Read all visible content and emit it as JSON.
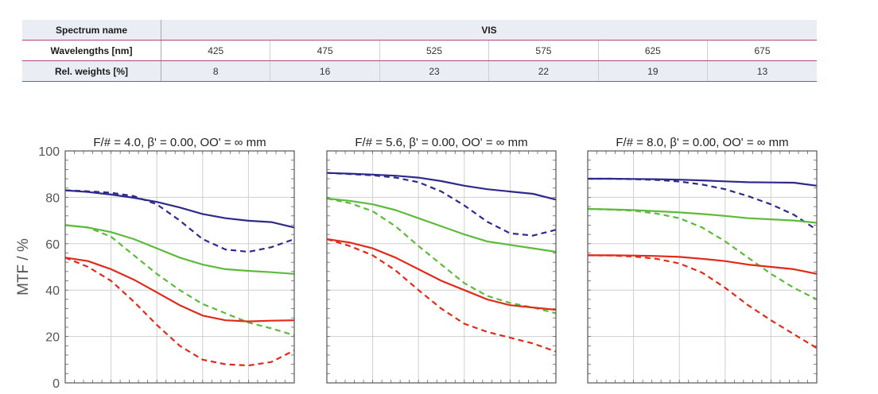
{
  "spectrum_table": {
    "row_labels": {
      "spectrum": "Spectrum name",
      "wavelengths": "Wavelengths [nm]",
      "weights": "Rel. weights [%]"
    },
    "spectrum_name": "VIS",
    "wavelengths": [
      "425",
      "475",
      "525",
      "575",
      "625",
      "675"
    ],
    "weights": [
      "8",
      "16",
      "23",
      "22",
      "19",
      "13"
    ]
  },
  "chart_data": [
    {
      "type": "line",
      "title": "F/# = 4.0, β' = 0.00, OO' = ∞ mm",
      "ylabel": "MTF / %",
      "ylim": [
        0,
        100
      ],
      "yticks": [
        "0",
        "20",
        "40",
        "60",
        "80",
        "100"
      ],
      "xlim": [
        0,
        10
      ],
      "grid": true,
      "colors": [
        "#2e2a8c",
        "#5dba3b",
        "#e02a1a"
      ],
      "series": [
        {
          "color": "#2e2a8c",
          "style": "solid",
          "x": [
            0,
            1,
            2,
            3,
            4,
            5,
            6,
            7,
            8,
            9,
            10
          ],
          "values": [
            83,
            82.3,
            81.2,
            79.8,
            78,
            75.6,
            72.8,
            71,
            69.9,
            69.3,
            67
          ]
        },
        {
          "color": "#2e2a8c",
          "style": "dashed",
          "x": [
            0,
            1,
            2,
            3,
            4,
            5,
            6,
            7,
            8,
            9,
            10
          ],
          "values": [
            83,
            82.6,
            82,
            80.5,
            77,
            70,
            62,
            57.5,
            56.5,
            58.5,
            62
          ]
        },
        {
          "color": "#5dba3b",
          "style": "solid",
          "x": [
            0,
            1,
            2,
            3,
            4,
            5,
            6,
            7,
            8,
            9,
            10
          ],
          "values": [
            68,
            67,
            65,
            62,
            58,
            54,
            51,
            49,
            48.3,
            47.7,
            47
          ]
        },
        {
          "color": "#5dba3b",
          "style": "dashed",
          "x": [
            0,
            1,
            2,
            3,
            4,
            5,
            6,
            7,
            8,
            9,
            10
          ],
          "values": [
            68,
            67,
            63,
            55,
            47,
            40,
            34,
            30,
            26,
            23.5,
            20.5
          ]
        },
        {
          "color": "#e02a1a",
          "style": "solid",
          "x": [
            0,
            1,
            2,
            3,
            4,
            5,
            6,
            7,
            8,
            9,
            10
          ],
          "values": [
            54,
            52.5,
            49,
            44.5,
            39,
            33.5,
            29,
            27,
            26.5,
            26.8,
            27
          ]
        },
        {
          "color": "#e02a1a",
          "style": "dashed",
          "x": [
            0,
            1,
            2,
            3,
            4,
            5,
            6,
            7,
            8,
            9,
            10
          ],
          "values": [
            54,
            50,
            44,
            35,
            25,
            16,
            10,
            8,
            7.5,
            9,
            14
          ]
        }
      ]
    },
    {
      "type": "line",
      "title": "F/# = 5.6, β' = 0.00, OO' = ∞ mm",
      "ylabel": "",
      "ylim": [
        0,
        100
      ],
      "xlim": [
        0,
        10
      ],
      "grid": true,
      "colors": [
        "#2e2a8c",
        "#5dba3b",
        "#e02a1a"
      ],
      "series": [
        {
          "color": "#2e2a8c",
          "style": "solid",
          "x": [
            0,
            1,
            2,
            3,
            4,
            5,
            6,
            7,
            8,
            9,
            10
          ],
          "values": [
            90.5,
            90.2,
            89.8,
            89.3,
            88.5,
            87,
            85,
            83.5,
            82.5,
            81.5,
            79
          ]
        },
        {
          "color": "#2e2a8c",
          "style": "dashed",
          "x": [
            0,
            1,
            2,
            3,
            4,
            5,
            6,
            7,
            8,
            9,
            10
          ],
          "values": [
            90.5,
            90,
            89.5,
            88.5,
            86.5,
            82.5,
            76.5,
            69.5,
            64.5,
            63.5,
            66
          ]
        },
        {
          "color": "#5dba3b",
          "style": "solid",
          "x": [
            0,
            1,
            2,
            3,
            4,
            5,
            6,
            7,
            8,
            9,
            10
          ],
          "values": [
            79.5,
            78.5,
            77,
            74.5,
            71,
            67.5,
            64,
            61,
            59.5,
            58,
            56.5
          ]
        },
        {
          "color": "#5dba3b",
          "style": "dashed",
          "x": [
            0,
            1,
            2,
            3,
            4,
            5,
            6,
            7,
            8,
            9,
            10
          ],
          "values": [
            79.5,
            77.5,
            74,
            67.5,
            59,
            51,
            43,
            37.5,
            34.5,
            32.5,
            30
          ]
        },
        {
          "color": "#e02a1a",
          "style": "solid",
          "x": [
            0,
            1,
            2,
            3,
            4,
            5,
            6,
            7,
            8,
            9,
            10
          ],
          "values": [
            62,
            60.5,
            58,
            54,
            49,
            44,
            40,
            36,
            33.5,
            32.5,
            31.5
          ]
        },
        {
          "color": "#e02a1a",
          "style": "dashed",
          "x": [
            0,
            1,
            2,
            3,
            4,
            5,
            6,
            7,
            8,
            9,
            10
          ],
          "values": [
            62,
            59,
            55,
            48.5,
            40,
            32,
            25.5,
            22,
            19.5,
            17,
            13.5
          ]
        }
      ]
    },
    {
      "type": "line",
      "title": "F/# = 8.0, β' = 0.00, OO' = ∞ mm",
      "ylabel": "",
      "ylim": [
        0,
        100
      ],
      "xlim": [
        0,
        10
      ],
      "grid": true,
      "colors": [
        "#2e2a8c",
        "#5dba3b",
        "#e02a1a"
      ],
      "series": [
        {
          "color": "#2e2a8c",
          "style": "solid",
          "x": [
            0,
            1,
            2,
            3,
            4,
            5,
            6,
            7,
            8,
            9,
            10
          ],
          "values": [
            88,
            88,
            87.9,
            87.8,
            87.6,
            87.3,
            86.9,
            86.5,
            86.4,
            86.3,
            85
          ]
        },
        {
          "color": "#2e2a8c",
          "style": "dashed",
          "x": [
            0,
            1,
            2,
            3,
            4,
            5,
            6,
            7,
            8,
            9,
            10
          ],
          "values": [
            88,
            88,
            87.8,
            87.5,
            86.8,
            85.5,
            83.5,
            80.5,
            77,
            72.5,
            66
          ]
        },
        {
          "color": "#5dba3b",
          "style": "solid",
          "x": [
            0,
            1,
            2,
            3,
            4,
            5,
            6,
            7,
            8,
            9,
            10
          ],
          "values": [
            75,
            74.8,
            74.5,
            74,
            73.5,
            72.8,
            72,
            71,
            70.5,
            70,
            69
          ]
        },
        {
          "color": "#5dba3b",
          "style": "dashed",
          "x": [
            0,
            1,
            2,
            3,
            4,
            5,
            6,
            7,
            8,
            9,
            10
          ],
          "values": [
            75,
            74.7,
            74.2,
            73,
            71,
            67,
            61,
            54,
            47,
            41,
            36
          ]
        },
        {
          "color": "#e02a1a",
          "style": "solid",
          "x": [
            0,
            1,
            2,
            3,
            4,
            5,
            6,
            7,
            8,
            9,
            10
          ],
          "values": [
            55,
            55,
            54.9,
            54.7,
            54.3,
            53.5,
            52.5,
            51,
            50,
            49,
            47
          ]
        },
        {
          "color": "#e02a1a",
          "style": "dashed",
          "x": [
            0,
            1,
            2,
            3,
            4,
            5,
            6,
            7,
            8,
            9,
            10
          ],
          "values": [
            55,
            54.9,
            54.5,
            53.5,
            51.5,
            47.5,
            41,
            33.5,
            27,
            21,
            15
          ]
        }
      ]
    }
  ]
}
